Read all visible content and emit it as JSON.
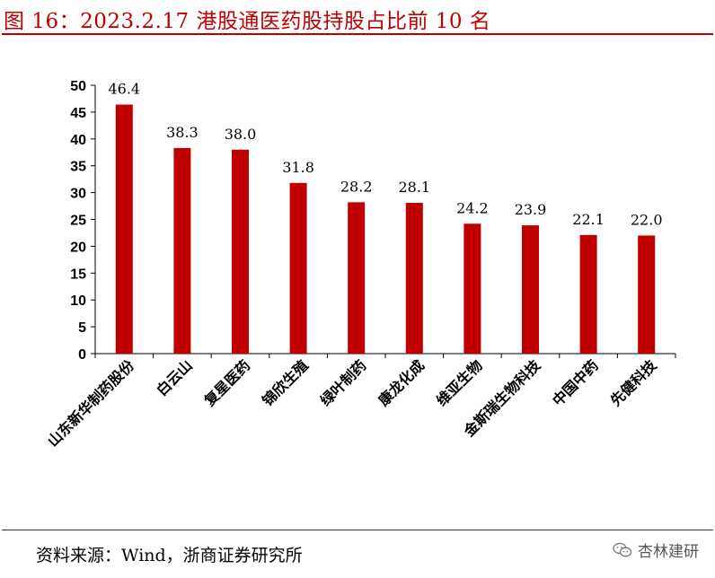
{
  "title": "图 16：2023.2.17 港股通医药股持股占比前 10 名",
  "source": "资料来源：Wind，浙商证券研究所",
  "watermark": "杏林建研",
  "watermark_icon": "wechat-icon",
  "colors": {
    "bar": "#c00000",
    "title": "#c00000"
  },
  "chart_data": {
    "type": "bar",
    "title": "",
    "xlabel": "",
    "ylabel": "",
    "ylim": [
      0,
      50
    ],
    "yticks": [
      0,
      5,
      10,
      15,
      20,
      25,
      30,
      35,
      40,
      45,
      50
    ],
    "grid": false,
    "categories": [
      "山东新华制药股份",
      "白云山",
      "复星医药",
      "锦欣生殖",
      "绿叶制药",
      "康龙化成",
      "维亚生物",
      "金斯瑞生物科技",
      "中国中药",
      "先健科技"
    ],
    "values": [
      46.4,
      38.3,
      38.0,
      31.8,
      28.2,
      28.1,
      24.2,
      23.9,
      22.1,
      22.0
    ],
    "value_labels": [
      "46.4",
      "38.3",
      "38.0",
      "31.8",
      "28.2",
      "28.1",
      "24.2",
      "23.9",
      "22.1",
      "22.0"
    ]
  }
}
